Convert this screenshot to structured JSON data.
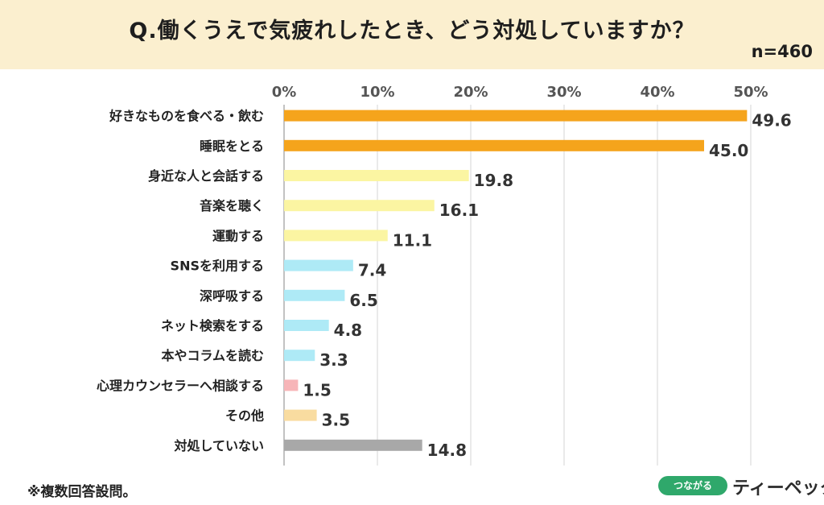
{
  "header": {
    "title": "Q.働くうえで気疲れしたとき、どう対処していますか？",
    "n": "n=460"
  },
  "footnote": "※複数回答設問。",
  "logo": {
    "badge": "つながる",
    "text": "ティーペック"
  },
  "colors": {
    "header_bg": "#fbefcf",
    "orange": "#f5a41c",
    "yellow": "#fbf5a2",
    "cyan": "#aeeaf6",
    "pink": "#f7b5b8",
    "peach": "#f9dca0",
    "gray": "#a8a8a8",
    "logo_green": "#2fa86b"
  },
  "chart_data": {
    "type": "bar",
    "orientation": "horizontal",
    "categories": [
      "好きなものを食べる・飲む",
      "睡眠をとる",
      "身近な人と会話する",
      "音楽を聴く",
      "運動する",
      "SNSを利用する",
      "深呼吸する",
      "ネット検索をする",
      "本やコラムを読む",
      "心理カウンセラーへ相談する",
      "その他",
      "対処していない"
    ],
    "values": [
      49.6,
      45.0,
      19.8,
      16.1,
      11.1,
      7.4,
      6.5,
      4.8,
      3.3,
      1.5,
      3.5,
      14.8
    ],
    "value_labels": [
      "49.6",
      "45.0",
      "19.8",
      "16.1",
      "11.1",
      "7.4",
      "6.5",
      "4.8",
      "3.3",
      "1.5",
      "3.5",
      "14.8"
    ],
    "bar_colors": [
      "#f5a41c",
      "#f5a41c",
      "#fbf5a2",
      "#fbf5a2",
      "#fbf5a2",
      "#aeeaf6",
      "#aeeaf6",
      "#aeeaf6",
      "#aeeaf6",
      "#f7b5b8",
      "#f9dca0",
      "#a8a8a8"
    ],
    "xlim": [
      0,
      50
    ],
    "xticks": [
      "0%",
      "10%",
      "20%",
      "30%",
      "40%",
      "50%"
    ],
    "grid": true
  }
}
